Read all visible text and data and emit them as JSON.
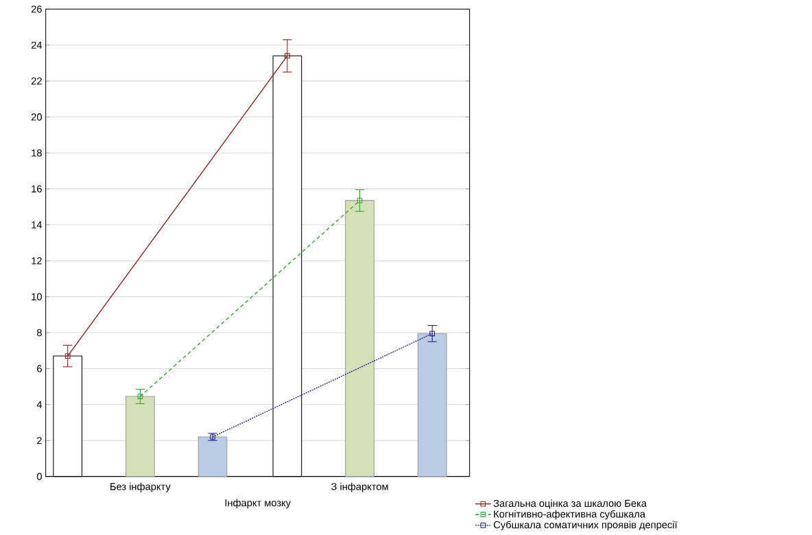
{
  "chart_data": {
    "type": "bar",
    "xlabel": "Інфаркт мозку",
    "categories": [
      "Без інфаркту",
      "З інфарктом"
    ],
    "series": [
      {
        "color": "#ffffff",
        "values": [
          6.7,
          23.4
        ]
      },
      {
        "color": "#d6e0b8",
        "values": [
          4.45,
          15.35
        ]
      },
      {
        "color": "#b9cce4",
        "values": [
          2.2,
          7.95
        ]
      },
      {
        "type": "line",
        "name": "Загальна оцінка за шкалою Бека",
        "color": "#8b1c1c",
        "line_style": "solid",
        "values": [
          6.7,
          23.4
        ],
        "errors": [
          0.6,
          0.9
        ]
      },
      {
        "type": "line",
        "name": "Когнітивно-афективна субшкала",
        "color": "#2ea02e",
        "line_style": "dashed",
        "values": [
          4.45,
          15.35
        ],
        "errors": [
          0.4,
          0.6
        ]
      },
      {
        "type": "line",
        "name": "Субшкала соматичних проявів депресії",
        "color": "#1c1c8b",
        "line_style": "dotted",
        "values": [
          2.2,
          7.95
        ],
        "errors": [
          0.2,
          0.45
        ]
      }
    ],
    "ylim": [
      0,
      26
    ],
    "yticks": [
      0,
      2,
      4,
      6,
      8,
      10,
      12,
      14,
      16,
      18,
      20,
      22,
      24,
      26
    ],
    "grid": "y",
    "legend": "bottom right",
    "marker": "square"
  }
}
